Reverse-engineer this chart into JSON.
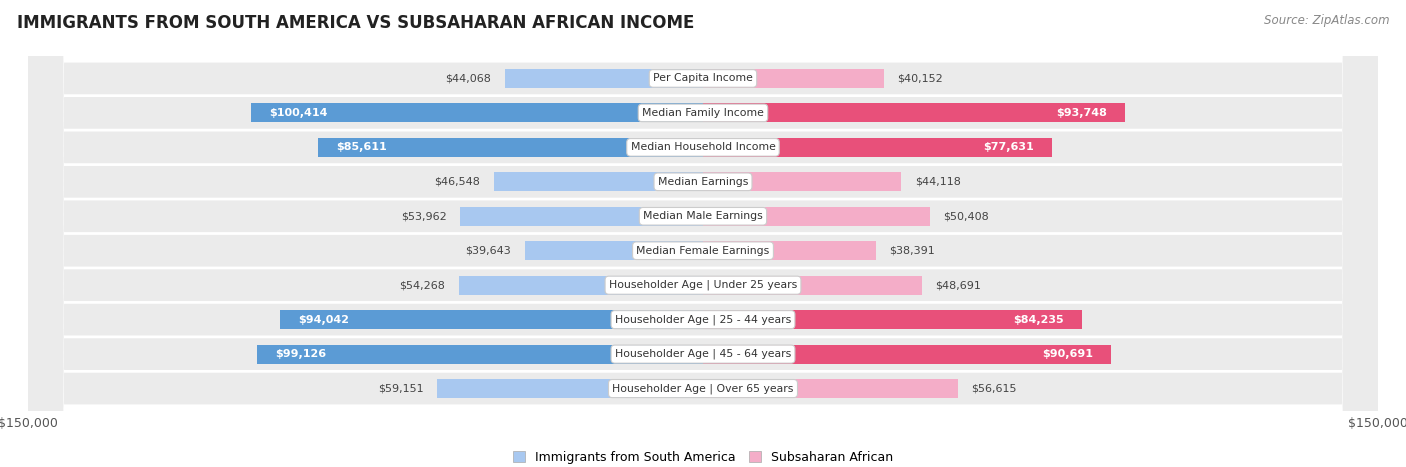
{
  "title": "IMMIGRANTS FROM SOUTH AMERICA VS SUBSAHARAN AFRICAN INCOME",
  "source": "Source: ZipAtlas.com",
  "categories": [
    "Per Capita Income",
    "Median Family Income",
    "Median Household Income",
    "Median Earnings",
    "Median Male Earnings",
    "Median Female Earnings",
    "Householder Age | Under 25 years",
    "Householder Age | 25 - 44 years",
    "Householder Age | 45 - 64 years",
    "Householder Age | Over 65 years"
  ],
  "south_america_values": [
    44068,
    100414,
    85611,
    46548,
    53962,
    39643,
    54268,
    94042,
    99126,
    59151
  ],
  "subsaharan_values": [
    40152,
    93748,
    77631,
    44118,
    50408,
    38391,
    48691,
    84235,
    90691,
    56615
  ],
  "south_america_labels": [
    "$44,068",
    "$100,414",
    "$85,611",
    "$46,548",
    "$53,962",
    "$39,643",
    "$54,268",
    "$94,042",
    "$99,126",
    "$59,151"
  ],
  "subsaharan_labels": [
    "$40,152",
    "$93,748",
    "$77,631",
    "$44,118",
    "$50,408",
    "$38,391",
    "$48,691",
    "$84,235",
    "$90,691",
    "$56,615"
  ],
  "sa_color_light": "#a8c8f0",
  "sa_color_dark": "#5b9bd5",
  "ss_color_light": "#f4adc8",
  "ss_color_dark": "#e8507a",
  "sa_threshold": 70000,
  "ss_threshold": 70000,
  "x_max": 150000,
  "background_color": "#ffffff",
  "row_bg_color": "#ebebeb",
  "legend_sa_label": "Immigrants from South America",
  "legend_ss_label": "Subsaharan African"
}
